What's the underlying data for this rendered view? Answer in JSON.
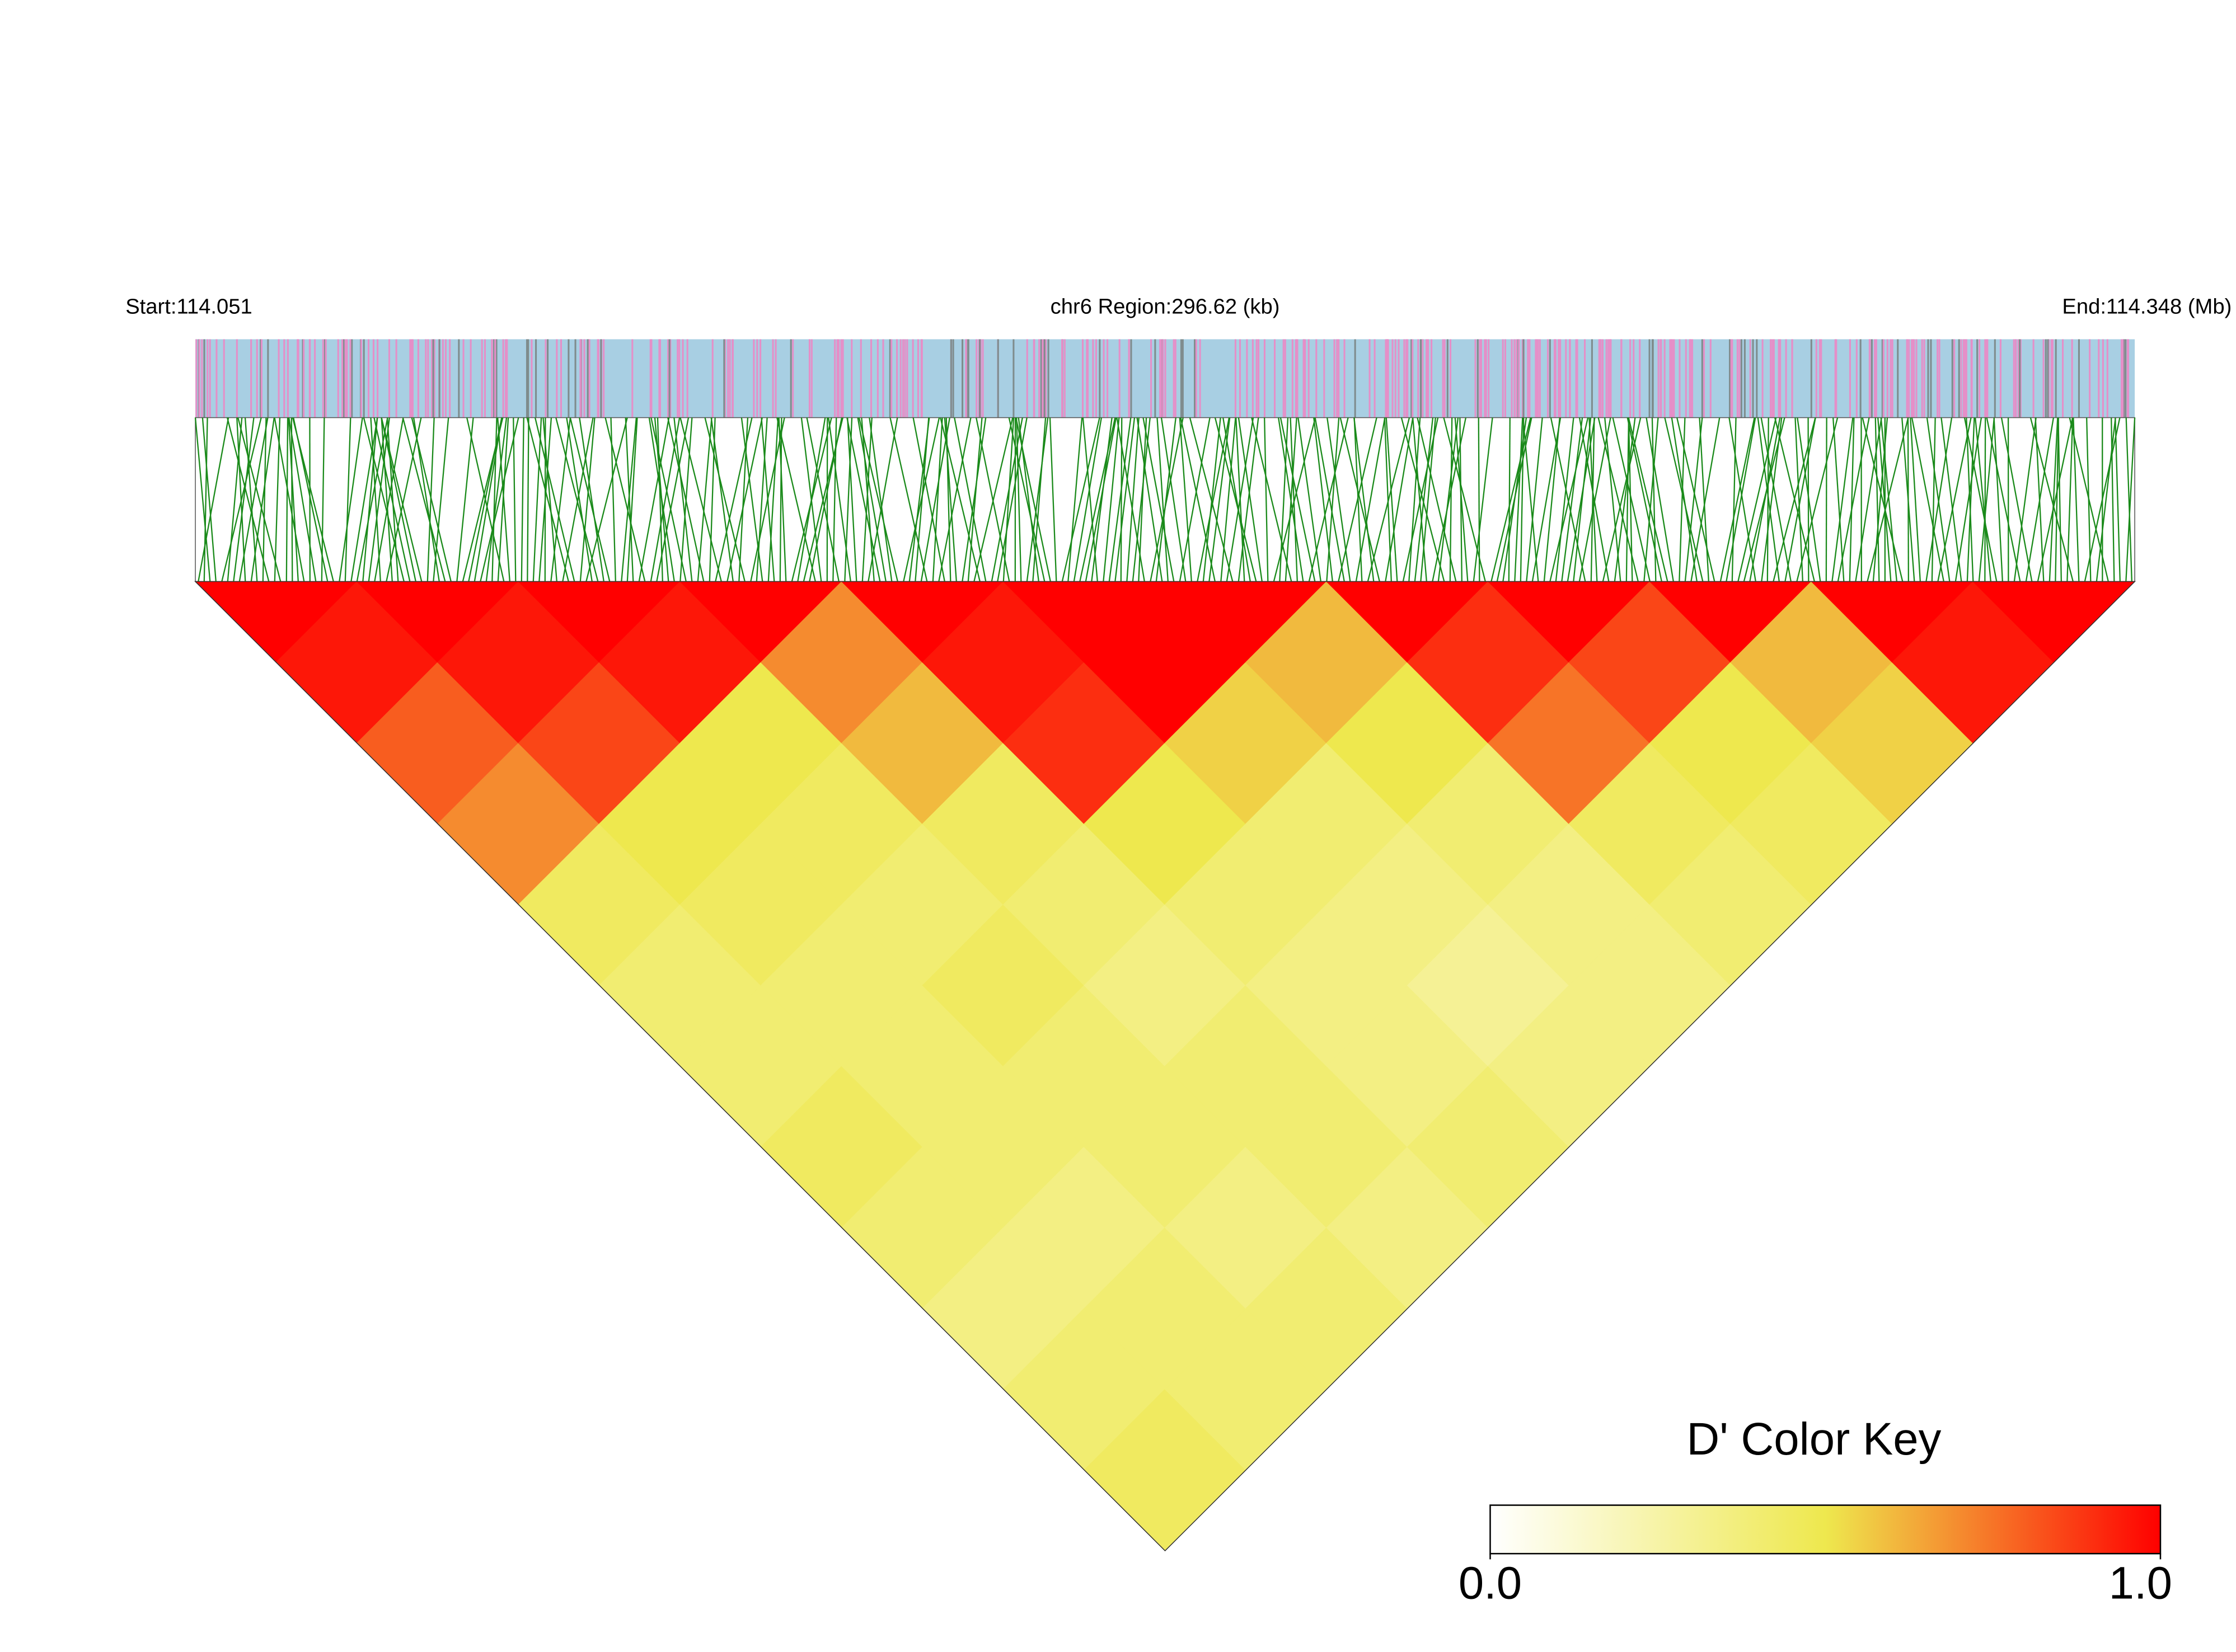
{
  "chart_data": {
    "type": "ld-heatmap",
    "start_label": "Start:114.051",
    "title": "chr6 Region:296.62 (kb)",
    "end_label": "End:114.348 (Mb)",
    "ld": [
      [
        1,
        0.95,
        0.8,
        0.7,
        0.45,
        0.4,
        0.4,
        0.45,
        0.4,
        0.35,
        0.4,
        0.45
      ],
      [
        1,
        0.95,
        0.85,
        0.5,
        0.45,
        0.4,
        0.4,
        0.4,
        0.35,
        0.4,
        0.4
      ],
      [
        1,
        0.95,
        0.5,
        0.45,
        0.4,
        0.45,
        0.4,
        0.4,
        0.35,
        0.4
      ],
      [
        1,
        0.7,
        0.6,
        0.45,
        0.4,
        0.35,
        0.4,
        0.4,
        0.35
      ],
      [
        1,
        0.95,
        0.9,
        0.5,
        0.4,
        0.35,
        0.35,
        0.4
      ],
      [
        1,
        1,
        0.55,
        0.4,
        0.35,
        0.3,
        0.35
      ],
      [
        1,
        0.6,
        0.5,
        0.4,
        0.35,
        0.35
      ],
      [
        1,
        0.9,
        0.75,
        0.45,
        0.4
      ],
      [
        1,
        0.85,
        0.5,
        0.45
      ],
      [
        1,
        0.6,
        0.55
      ],
      [
        1,
        0.95
      ],
      [
        1
      ]
    ],
    "colors": [
      "#ffffff",
      "#eee84e",
      "#ff0000"
    ],
    "legend_title": "D' Color Key",
    "xlim": [
      0,
      1
    ],
    "xticks": [
      {
        "value": 0,
        "label": "0.0"
      },
      {
        "value": 1,
        "label": "1.0"
      }
    ]
  }
}
